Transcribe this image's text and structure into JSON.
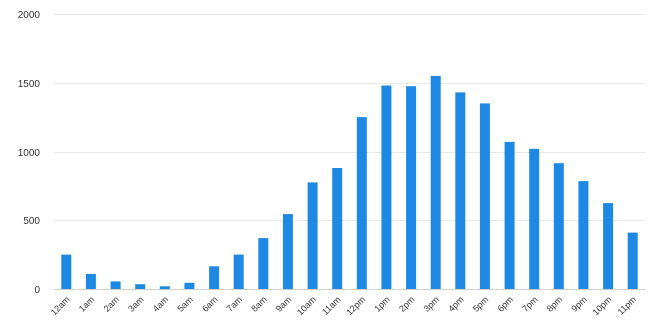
{
  "chart_data": {
    "type": "bar",
    "title": "",
    "xlabel": "",
    "ylabel": "",
    "ylim": [
      0,
      2000
    ],
    "yticks": [
      0,
      500,
      1000,
      1500,
      2000
    ],
    "grid": true,
    "legend": "none",
    "bar_color": "#1e88e5",
    "categories": [
      "12am",
      "1am",
      "2am",
      "3am",
      "4am",
      "5am",
      "6am",
      "7am",
      "8am",
      "9am",
      "10am",
      "11am",
      "12pm",
      "1pm",
      "2pm",
      "3pm",
      "4pm",
      "5pm",
      "6pm",
      "7pm",
      "8pm",
      "9pm",
      "10pm",
      "11pm"
    ],
    "values": [
      250,
      110,
      55,
      35,
      20,
      45,
      165,
      250,
      370,
      545,
      775,
      880,
      1250,
      1480,
      1475,
      1550,
      1430,
      1350,
      1070,
      1020,
      915,
      785,
      625,
      410
    ]
  }
}
